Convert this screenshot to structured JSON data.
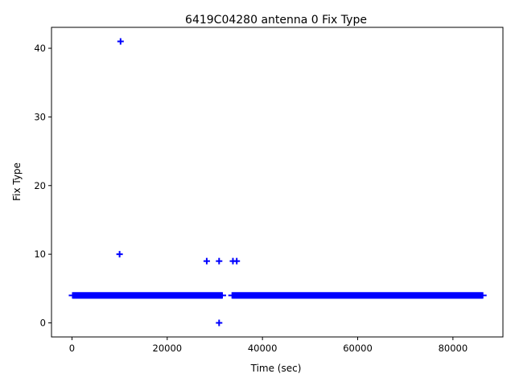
{
  "chart_data": {
    "type": "scatter",
    "title": "6419C04280 antenna 0 Fix Type",
    "xlabel": "Time (sec)",
    "ylabel": "Fix Type",
    "xlim": [
      -4300,
      90500
    ],
    "ylim": [
      -2.05,
      43.05
    ],
    "xticks": [
      0,
      20000,
      40000,
      60000,
      80000
    ],
    "yticks": [
      0,
      10,
      20,
      30,
      40
    ],
    "xtick_labels": [
      "0",
      "20000",
      "40000",
      "60000",
      "80000"
    ],
    "ytick_labels": [
      "0",
      "10",
      "20",
      "30",
      "40"
    ],
    "grid": false,
    "legend": "none",
    "marker": "plus",
    "color": "#0000ff",
    "series": [
      {
        "dense_segments": [
          {
            "x_start": 0,
            "x_end": 31700,
            "y": 4
          },
          {
            "x_start": 33500,
            "x_end": 86400,
            "y": 4
          }
        ],
        "points": [
          {
            "x": 10200,
            "y": 41
          },
          {
            "x": 10000,
            "y": 10
          },
          {
            "x": 28300,
            "y": 9
          },
          {
            "x": 30900,
            "y": 9
          },
          {
            "x": 33800,
            "y": 9
          },
          {
            "x": 34600,
            "y": 9
          },
          {
            "x": 30900,
            "y": 0
          }
        ]
      }
    ]
  }
}
